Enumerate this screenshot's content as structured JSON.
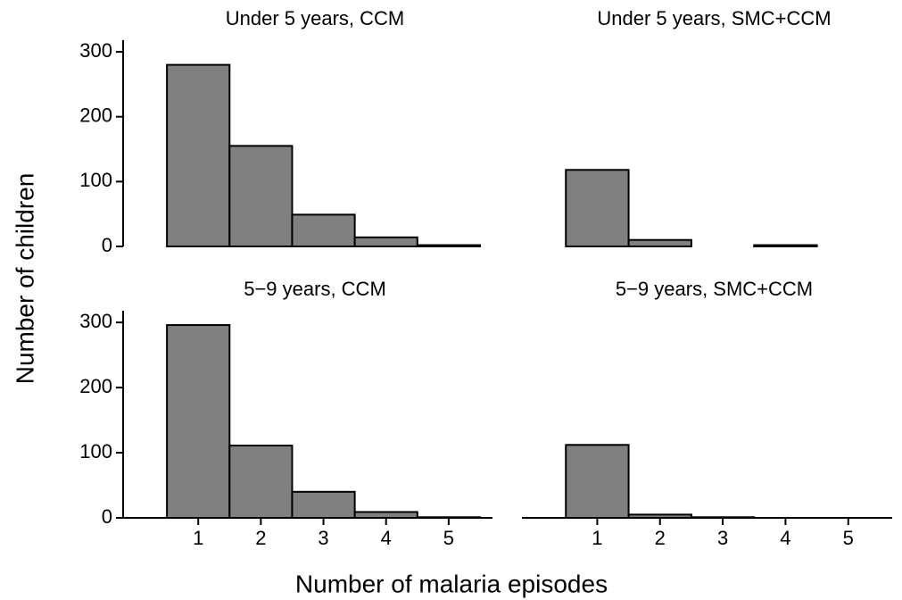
{
  "y_label": "Number of children",
  "x_label": "Number of malaria episodes",
  "chart_data": [
    {
      "type": "histogram",
      "title": "Under 5 years, CCM",
      "bins": [
        0.5,
        1.5,
        2.5,
        3.5,
        4.5,
        5.5
      ],
      "values": [
        280,
        155,
        49,
        14,
        2
      ],
      "color": "#808080",
      "xlim": [
        -0.2,
        5.7
      ],
      "ylim": [
        0,
        318
      ],
      "yticks": [
        0,
        100,
        200,
        300
      ],
      "x_axis": false,
      "y_axis": true
    },
    {
      "type": "histogram",
      "title": "Under 5 years, SMC+CCM",
      "bins": [
        0.5,
        1.5,
        2.5,
        3.5,
        4.5,
        5.5
      ],
      "values": [
        118,
        10,
        0,
        2,
        0
      ],
      "color": "#808080",
      "xlim": [
        -0.2,
        5.7
      ],
      "ylim": [
        0,
        318
      ],
      "x_axis": false,
      "y_axis": false
    },
    {
      "type": "histogram",
      "title": "5−9 years, CCM",
      "bins": [
        0.5,
        1.5,
        2.5,
        3.5,
        4.5,
        5.5
      ],
      "values": [
        296,
        111,
        40,
        9,
        1
      ],
      "color": "#808080",
      "xlim": [
        -0.2,
        5.7
      ],
      "ylim": [
        0,
        318
      ],
      "xticks": [
        1,
        2,
        3,
        4,
        5
      ],
      "yticks": [
        0,
        100,
        200,
        300
      ],
      "x_axis": true,
      "y_axis": true
    },
    {
      "type": "histogram",
      "title": "5−9 years, SMC+CCM",
      "bins": [
        0.5,
        1.5,
        2.5,
        3.5,
        4.5,
        5.5
      ],
      "values": [
        112,
        5,
        1,
        0,
        0
      ],
      "color": "#808080",
      "xlim": [
        -0.2,
        5.7
      ],
      "ylim": [
        0,
        318
      ],
      "xticks": [
        1,
        2,
        3,
        4,
        5
      ],
      "x_axis": true,
      "y_axis": false
    }
  ]
}
